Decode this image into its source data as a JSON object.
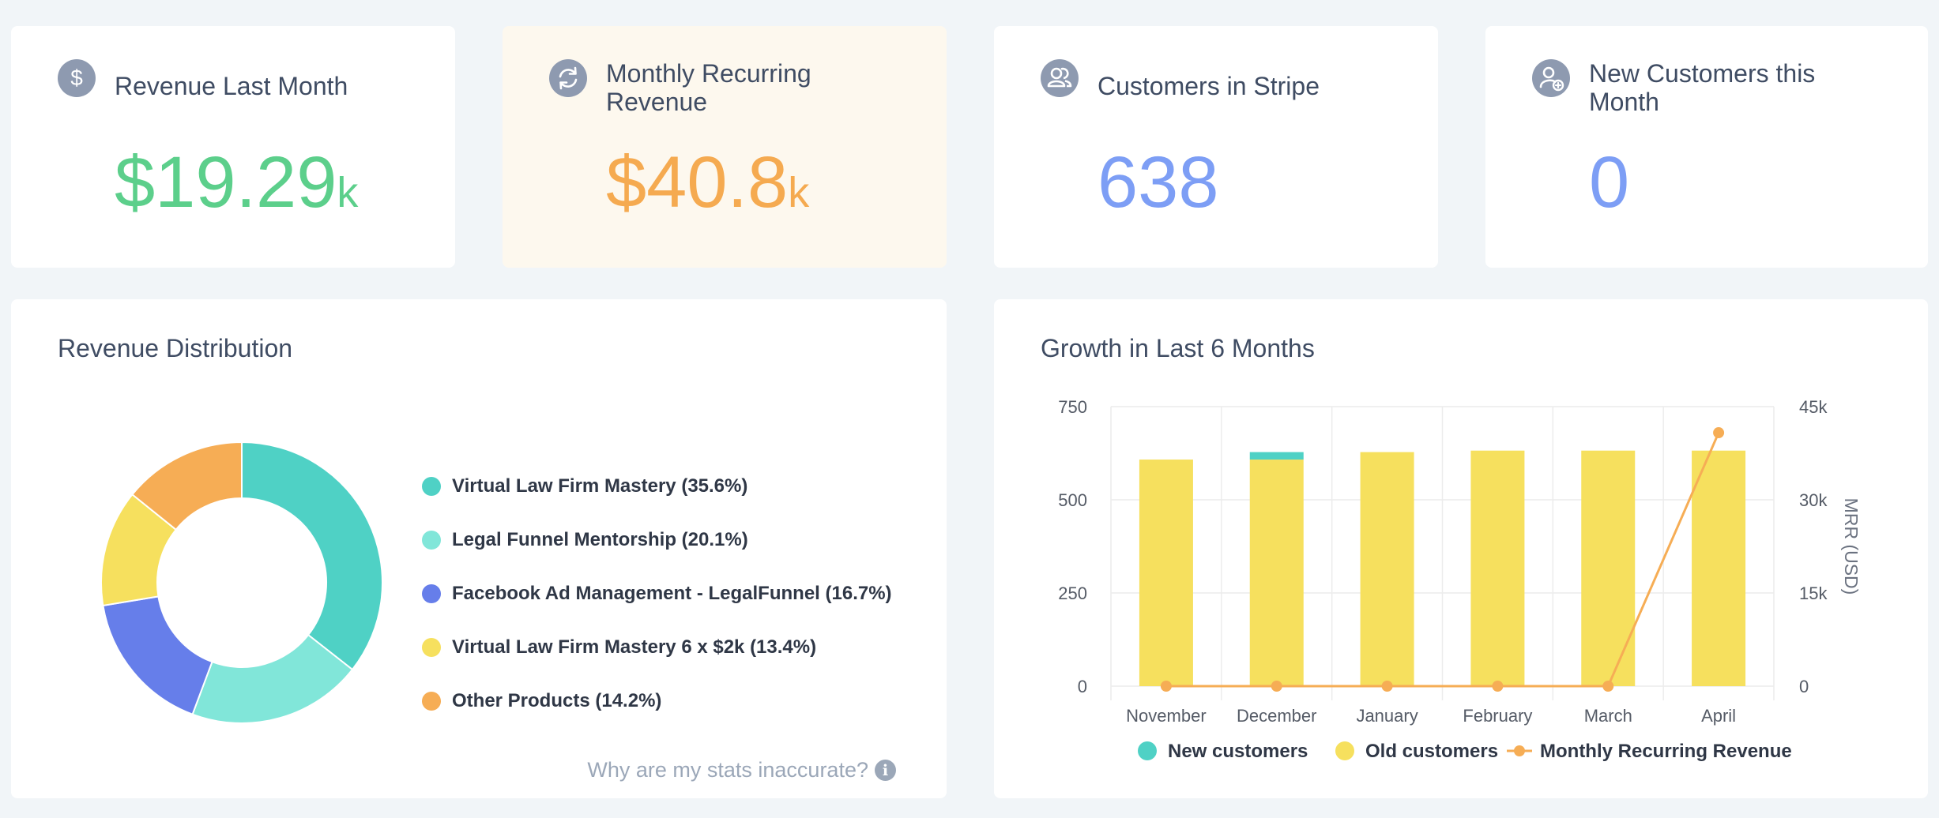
{
  "stats": [
    {
      "title": "Revenue Last Month",
      "value": "$19.29",
      "suffix": "k",
      "icon": "dollar-icon",
      "color": "#5ccf8b"
    },
    {
      "title": "Monthly Recurring Revenue",
      "value": "$40.8",
      "suffix": "k",
      "icon": "refresh-icon",
      "color": "#f5aa50"
    },
    {
      "title": "Customers in Stripe",
      "value": "638",
      "suffix": "",
      "icon": "customers-icon",
      "color": "#7d9ef5"
    },
    {
      "title": "New Customers this Month",
      "value": "0",
      "suffix": "",
      "icon": "add-customer-icon",
      "color": "#7d9ef5"
    }
  ],
  "revenue_distribution": {
    "title": "Revenue Distribution",
    "link_text": "Why are my stats inaccurate?",
    "info_icon": "info-icon"
  },
  "growth": {
    "title": "Growth in Last 6 Months"
  },
  "chart_data": [
    {
      "type": "pie",
      "title": "Revenue Distribution",
      "labels": [
        "Virtual Law Firm Mastery (35.6%)",
        "Legal Funnel Mentorship (20.1%)",
        "Facebook Ad Management - LegalFunnel (16.7%)",
        "Virtual Law Firm Mastery 6 x $2k (13.4%)",
        "Other Products (14.2%)"
      ],
      "values": [
        35.6,
        20.1,
        16.7,
        13.4,
        14.2
      ],
      "colors": [
        "#4fd1c5",
        "#81e6d9",
        "#667eea",
        "#f6e05e",
        "#f6ad55"
      ],
      "donut": true
    },
    {
      "type": "bar",
      "title": "Growth in Last 6 Months",
      "categories": [
        "November",
        "December",
        "January",
        "February",
        "March",
        "April"
      ],
      "series": [
        {
          "name": "Old customers",
          "values": [
            608,
            608,
            628,
            632,
            632,
            632
          ],
          "color": "#f6e05e"
        },
        {
          "name": "New customers",
          "values": [
            0,
            20,
            0,
            0,
            0,
            0
          ],
          "color": "#4fd1c5"
        },
        {
          "name": "Monthly Recurring Revenue",
          "type": "line",
          "axis": "right",
          "values": [
            0,
            0,
            0,
            0,
            0,
            40800
          ],
          "color": "#f6ad55"
        }
      ],
      "ylim": [
        0,
        750
      ],
      "yticks": [
        "0",
        "250",
        "500",
        "750"
      ],
      "y2lim": [
        0,
        45000
      ],
      "y2ticks": [
        "0",
        "15k",
        "30k",
        "45k"
      ],
      "ylabel": "",
      "y2label": "MRR (USD)",
      "stacked": true,
      "grid": true,
      "legend": "bottom",
      "legend_order": [
        "New customers",
        "Old customers",
        "Monthly Recurring Revenue"
      ]
    }
  ]
}
